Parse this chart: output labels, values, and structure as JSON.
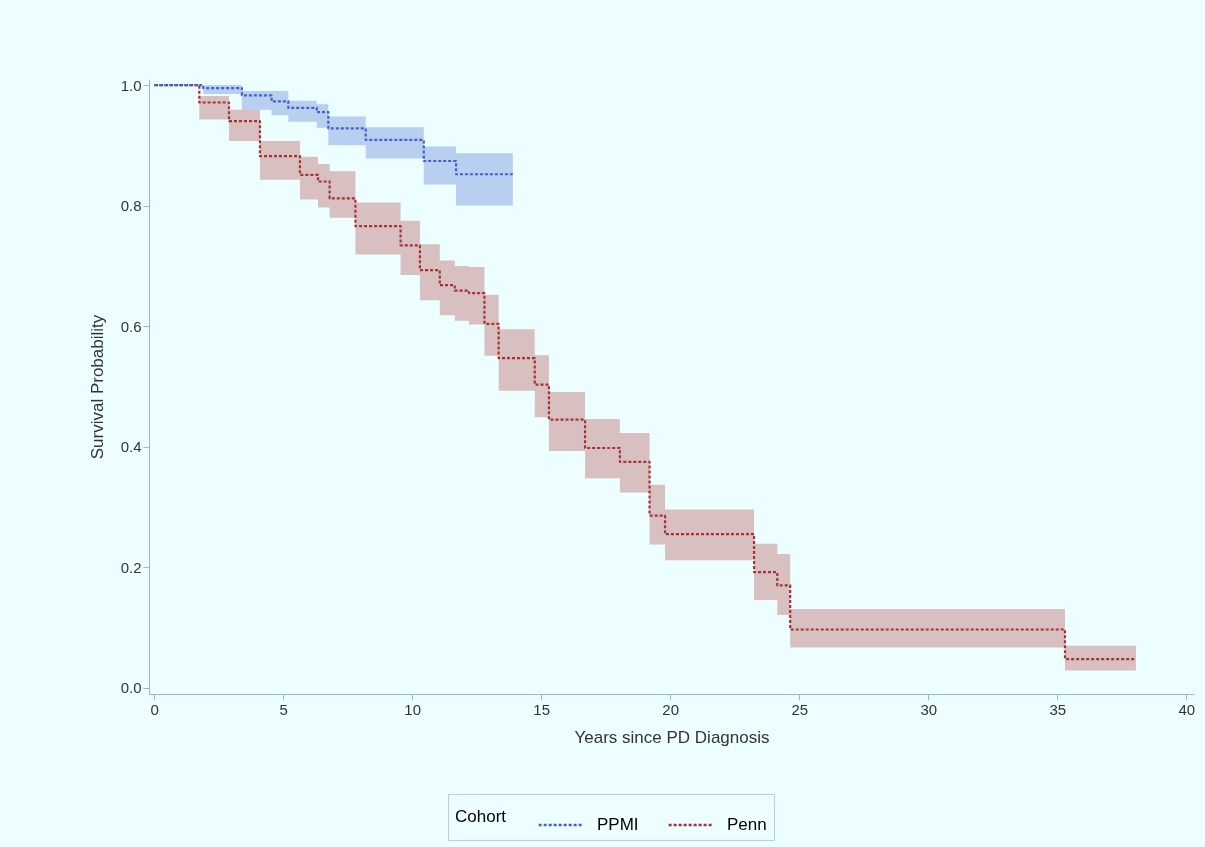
{
  "chart_data": {
    "type": "step",
    "xlabel": "Years since PD Diagnosis",
    "ylabel": "Survival Probability",
    "legend_title": "Cohort",
    "legend": "bottom",
    "line_style": "dashed",
    "grid": false,
    "xlim": [
      -0.2,
      40.3
    ],
    "xticks": [
      0,
      5,
      10,
      15,
      20,
      25,
      30,
      35,
      40
    ],
    "ylim": [
      -0.01,
      1.01
    ],
    "yticks": [
      {
        "value": 0,
        "label": "0.0"
      },
      {
        "value": 0.2,
        "label": "0.2"
      },
      {
        "value": 0.4,
        "label": "0.4"
      },
      {
        "value": 0.6,
        "label": "0.6"
      },
      {
        "value": 0.8,
        "label": "0.8"
      },
      {
        "value": 1,
        "label": "1.0"
      }
    ],
    "series": [
      {
        "name": "PPMI",
        "color": "#3f62cc",
        "x": [
          0,
          1.9,
          3.4,
          4.55,
          5.2,
          6.3,
          6.75,
          8.2,
          10.45,
          11.7,
          13.9
        ],
        "values": [
          1.0,
          0.995,
          0.983,
          0.973,
          0.962,
          0.955,
          0.928,
          0.909,
          0.874,
          0.852,
          0.852
        ],
        "lower": [
          1.0,
          0.985,
          0.959,
          0.95,
          0.939,
          0.929,
          0.9,
          0.878,
          0.835,
          0.8,
          0.8
        ],
        "upper": [
          1.0,
          1.0,
          0.99,
          0.99,
          0.974,
          0.968,
          0.948,
          0.93,
          0.898,
          0.887,
          0.887
        ]
      },
      {
        "name": "Penn",
        "color": "#a83232",
        "x": [
          0,
          1.75,
          2.9,
          4.1,
          5.65,
          6.35,
          6.8,
          7.8,
          9.55,
          10.3,
          11.07,
          11.65,
          12.2,
          12.8,
          13.35,
          14.75,
          15.3,
          16.7,
          18.05,
          19.2,
          19.8,
          23.25,
          24.15,
          24.65,
          35.3,
          38.05
        ],
        "values": [
          1.0,
          0.971,
          0.94,
          0.882,
          0.851,
          0.84,
          0.812,
          0.766,
          0.734,
          0.693,
          0.668,
          0.659,
          0.655,
          0.604,
          0.547,
          0.503,
          0.445,
          0.398,
          0.375,
          0.286,
          0.255,
          0.192,
          0.17,
          0.097,
          0.048,
          0.048
        ],
        "lower": [
          1.0,
          0.943,
          0.907,
          0.843,
          0.81,
          0.797,
          0.78,
          0.719,
          0.685,
          0.643,
          0.618,
          0.609,
          0.603,
          0.551,
          0.493,
          0.449,
          0.393,
          0.348,
          0.324,
          0.238,
          0.212,
          0.146,
          0.121,
          0.067,
          0.029,
          0.029
        ],
        "upper": [
          1.0,
          0.982,
          0.959,
          0.907,
          0.881,
          0.869,
          0.857,
          0.805,
          0.775,
          0.736,
          0.709,
          0.7,
          0.698,
          0.652,
          0.595,
          0.552,
          0.491,
          0.446,
          0.423,
          0.337,
          0.296,
          0.239,
          0.222,
          0.131,
          0.07,
          0.07
        ]
      }
    ]
  }
}
